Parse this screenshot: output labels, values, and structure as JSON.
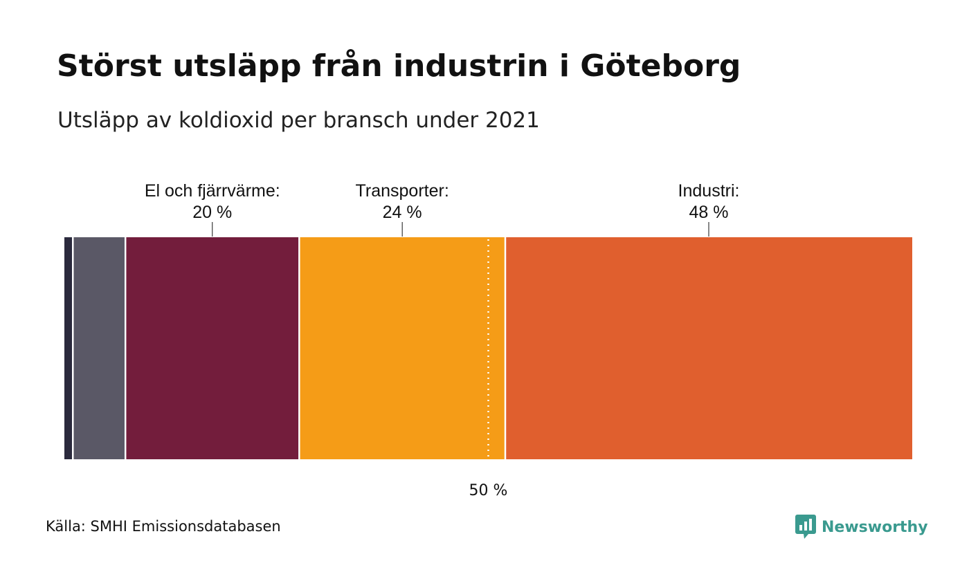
{
  "title": "Störst utsläpp från industrin i Göteborg",
  "subtitle": "Utsläpp av koldioxid per bransch under 2021",
  "source": "Källa: SMHI Emissionsdatabasen",
  "brand": {
    "name": "Newsworthy",
    "color": "#3a9a8f",
    "icon": "newsworthy-logo-icon"
  },
  "chart_data": {
    "type": "bar",
    "orientation": "horizontal-stacked",
    "unit": "%",
    "segments": [
      {
        "value": 1,
        "label": "",
        "display": "",
        "color": "#2b2a3d"
      },
      {
        "value": 6.2,
        "label": "",
        "display": "",
        "color": "#5a5866"
      },
      {
        "value": 20.5,
        "label": "El och fjärrvärme:",
        "display": "20 %",
        "color": "#731d3c"
      },
      {
        "value": 24.3,
        "label": "Transporter:",
        "display": "24 %",
        "color": "#f59c17"
      },
      {
        "value": 48,
        "label": "Industri:",
        "display": "48 %",
        "color": "#e05f2e"
      }
    ],
    "reference": {
      "value": 50,
      "label": "50 %",
      "style": "dotted",
      "color": "#ffffff"
    },
    "xlim": [
      0,
      100
    ]
  }
}
